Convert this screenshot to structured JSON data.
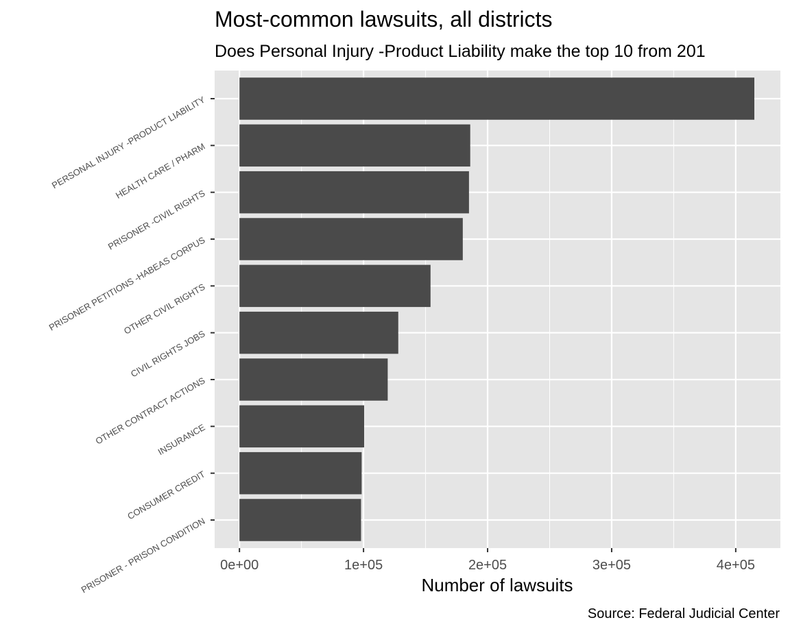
{
  "chart_data": {
    "type": "bar",
    "orientation": "horizontal",
    "title": "Most-common lawsuits, all districts",
    "subtitle": "Does Personal Injury -Product Liability make the top 10 from 201",
    "xlabel": "Number of lawsuits",
    "ylabel": "",
    "caption": "Source: Federal Judicial Center",
    "categories": [
      "PERSONAL INJURY -PRODUCT LIABILITY",
      "HEALTH CARE / PHARM",
      "PRISONER -CIVIL RIGHTS",
      "PRISONER PETITIONS -HABEAS CORPUS",
      "OTHER CIVIL RIGHTS",
      "CIVIL RIGHTS JOBS",
      "OTHER CONTRACT ACTIONS",
      "INSURANCE",
      "CONSUMER CREDIT",
      "PRISONER - PRISON CONDITION"
    ],
    "values": [
      415000,
      186000,
      185000,
      180000,
      154000,
      128000,
      119500,
      100500,
      98500,
      98000
    ],
    "xlim": [
      -20000,
      436000
    ],
    "x_ticks": [
      0,
      100000,
      200000,
      300000,
      400000
    ],
    "x_tick_labels": [
      "0e+00",
      "1e+05",
      "2e+05",
      "3e+05",
      "4e+05"
    ],
    "grid": true,
    "legend": "none",
    "colors": {
      "bar": "#4a4a4a",
      "panel_background": "#e5e5e5",
      "grid_major": "#ffffff",
      "tick_text": "#4d4d4d"
    }
  }
}
